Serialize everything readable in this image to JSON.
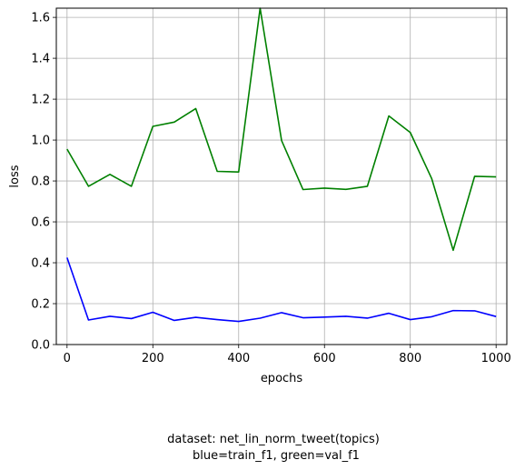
{
  "chart_data": {
    "type": "line",
    "title": "",
    "xlabel": "epochs",
    "ylabel": "loss",
    "caption_lines": [
      "dataset: net_lin_norm_tweet(topics)",
      "blue=train_f1, green=val_f1"
    ],
    "xlim": [
      -25,
      1025
    ],
    "ylim": [
      0.0,
      1.645
    ],
    "xticks": [
      0,
      200,
      400,
      600,
      800,
      1000
    ],
    "yticks": [
      0.0,
      0.2,
      0.4,
      0.6,
      0.8,
      1.0,
      1.2,
      1.4,
      1.6
    ],
    "xtick_labels": [
      "0",
      "200",
      "400",
      "600",
      "800",
      "1000"
    ],
    "ytick_labels": [
      "0.0",
      "0.2",
      "0.4",
      "0.6",
      "0.8",
      "1.0",
      "1.2",
      "1.4",
      "1.6"
    ],
    "grid": true,
    "x": [
      0,
      50,
      100,
      150,
      200,
      250,
      300,
      350,
      400,
      450,
      500,
      550,
      600,
      650,
      700,
      750,
      800,
      850,
      900,
      950,
      1000
    ],
    "series": [
      {
        "color": "#0000ff",
        "values": [
          0.425,
          0.12,
          0.138,
          0.127,
          0.158,
          0.118,
          0.133,
          0.122,
          0.113,
          0.129,
          0.156,
          0.131,
          0.134,
          0.138,
          0.129,
          0.153,
          0.122,
          0.136,
          0.166,
          0.165,
          0.137
        ]
      },
      {
        "color": "#008000",
        "values": [
          0.956,
          0.774,
          0.832,
          0.774,
          1.067,
          1.088,
          1.154,
          0.847,
          0.844,
          1.645,
          0.998,
          0.758,
          0.765,
          0.759,
          0.774,
          1.118,
          1.037,
          0.811,
          0.461,
          0.823,
          0.82
        ]
      }
    ]
  }
}
